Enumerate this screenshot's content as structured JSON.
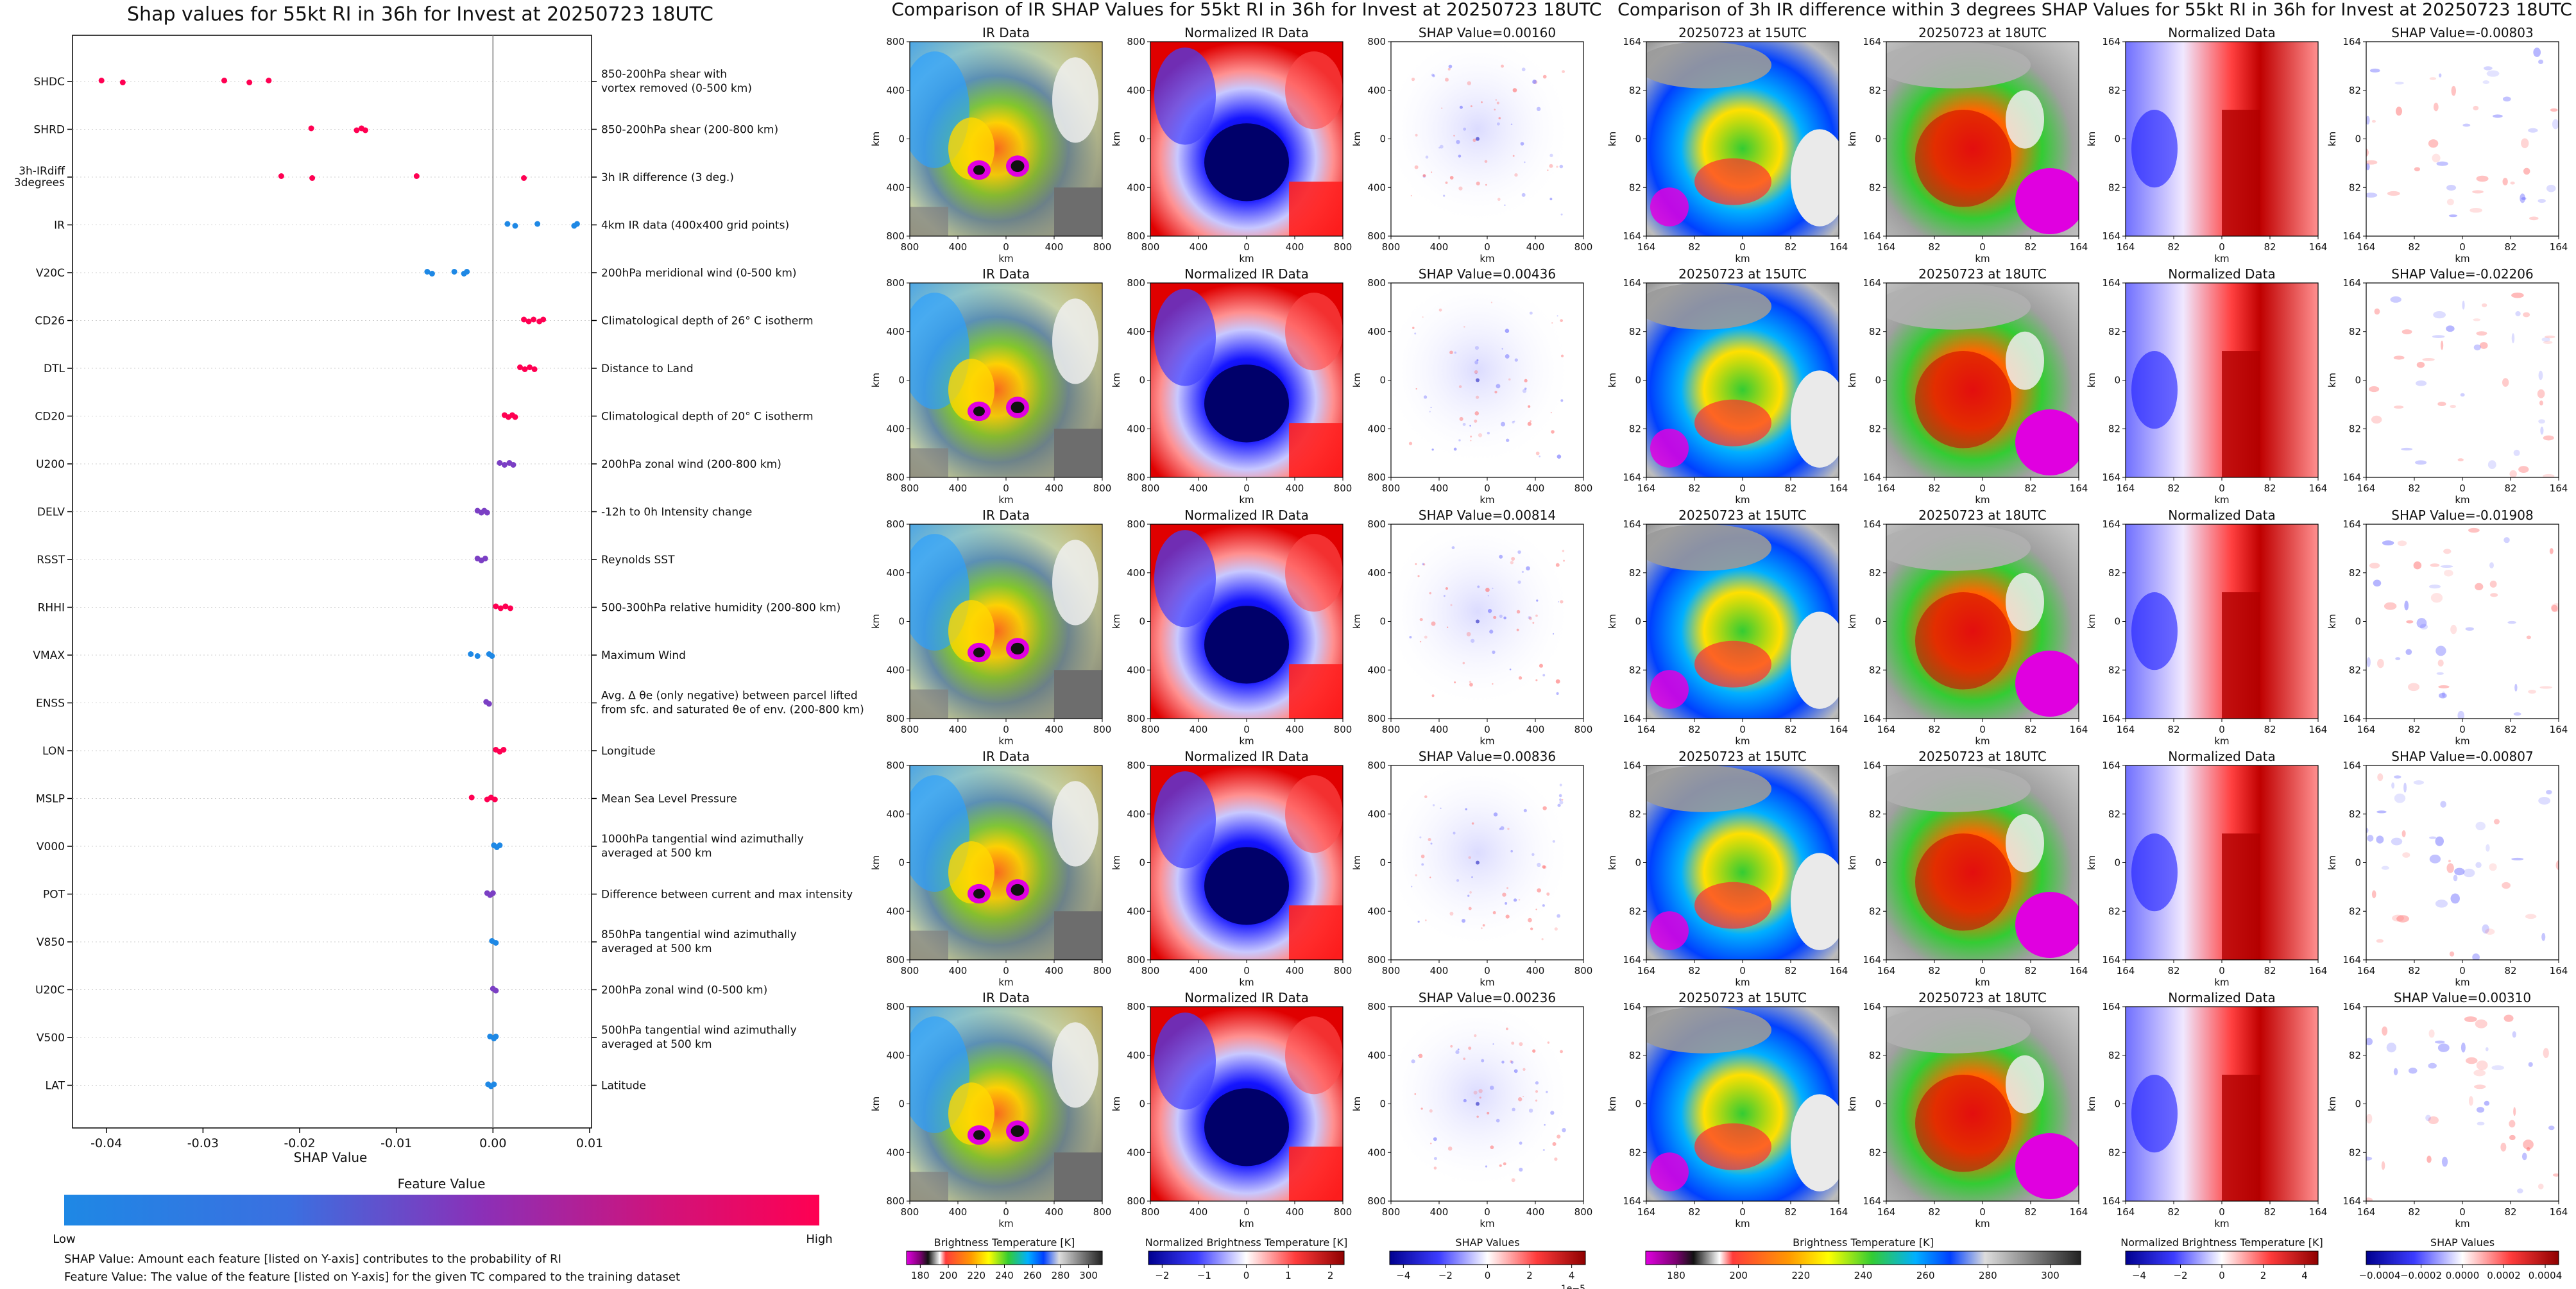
{
  "left": {
    "title": "Shap values for 55kt RI in 36h for Invest at 20250723 18UTC",
    "xlabel": "SHAP Value",
    "colorbar": {
      "title": "Feature Value",
      "low": "Low",
      "high": "High"
    },
    "notes": [
      "SHAP Value: Amount each feature [listed on Y-axis] contributes to the probability of RI",
      "Feature Value: The value of the feature [listed on Y-axis] for the given TC compared to the training dataset"
    ]
  },
  "chart_data": [
    {
      "type": "scatter",
      "title": "Shap values for 55kt RI in 36h for Invest at 20250723 18UTC",
      "xlabel": "SHAP Value",
      "xlim": [
        -0.0435,
        0.0102
      ],
      "xticks": [
        "-0.04",
        "-0.03",
        "-0.02",
        "-0.01",
        "0.00",
        "0.01"
      ],
      "xtick_values": [
        -0.04,
        -0.03,
        -0.02,
        -0.01,
        0.0,
        0.01
      ],
      "legend": "colorbar-bottom",
      "color_scale": [
        "#1e88e5",
        "#7b3fc4",
        "#c5167c",
        "#ff0052"
      ],
      "features": [
        {
          "code": "SHDC",
          "desc": [
            "850-200hPa shear with",
            "vortex removed (0-500 km)"
          ],
          "points": [
            {
              "x": -0.0405,
              "c": 1
            },
            {
              "x": -0.0383,
              "c": 1
            },
            {
              "x": -0.0278,
              "c": 1
            },
            {
              "x": -0.0252,
              "c": 1
            },
            {
              "x": -0.0232,
              "c": 1
            }
          ]
        },
        {
          "code": "SHRD",
          "desc": [
            "850-200hPa shear (200-800 km)"
          ],
          "points": [
            {
              "x": -0.0188,
              "c": 1
            },
            {
              "x": -0.0141,
              "c": 1
            },
            {
              "x": -0.0136,
              "c": 1
            },
            {
              "x": -0.0132,
              "c": 1
            }
          ]
        },
        {
          "code": "3h-IRdiff 3degrees",
          "desc": [
            "3h IR difference (3 deg.)"
          ],
          "points": [
            {
              "x": -0.0219,
              "c": 1
            },
            {
              "x": -0.0187,
              "c": 1
            },
            {
              "x": -0.0079,
              "c": 1
            },
            {
              "x": 0.0032,
              "c": 1
            }
          ]
        },
        {
          "code": "IR",
          "desc": [
            "4km IR data (400x400 grid points)"
          ],
          "points": [
            {
              "x": 0.0015,
              "c": 0
            },
            {
              "x": 0.0023,
              "c": 0
            },
            {
              "x": 0.0046,
              "c": 0
            },
            {
              "x": 0.0084,
              "c": 0
            },
            {
              "x": 0.0087,
              "c": 0
            }
          ]
        },
        {
          "code": "V20C",
          "desc": [
            "200hPa meridional wind (0-500 km)"
          ],
          "points": [
            {
              "x": -0.0068,
              "c": 0
            },
            {
              "x": -0.0063,
              "c": 0
            },
            {
              "x": -0.004,
              "c": 0
            },
            {
              "x": -0.003,
              "c": 0
            },
            {
              "x": -0.0027,
              "c": 0
            }
          ]
        },
        {
          "code": "CD26",
          "desc": [
            "Climatological depth of 26° C isotherm"
          ],
          "points": [
            {
              "x": 0.0032,
              "c": 1
            },
            {
              "x": 0.0037,
              "c": 1
            },
            {
              "x": 0.0042,
              "c": 1
            },
            {
              "x": 0.0048,
              "c": 1
            },
            {
              "x": 0.0052,
              "c": 1
            }
          ]
        },
        {
          "code": "DTL",
          "desc": [
            "Distance to Land"
          ],
          "points": [
            {
              "x": 0.0028,
              "c": 1
            },
            {
              "x": 0.0033,
              "c": 1
            },
            {
              "x": 0.0038,
              "c": 1
            },
            {
              "x": 0.0043,
              "c": 1
            }
          ]
        },
        {
          "code": "CD20",
          "desc": [
            "Climatological depth of 20° C isotherm"
          ],
          "points": [
            {
              "x": 0.0012,
              "c": 1
            },
            {
              "x": 0.0016,
              "c": 1
            },
            {
              "x": 0.002,
              "c": 1
            },
            {
              "x": 0.0023,
              "c": 1
            }
          ]
        },
        {
          "code": "U200",
          "desc": [
            "200hPa zonal wind (200-800 km)"
          ],
          "points": [
            {
              "x": 0.0007,
              "c": 0.5
            },
            {
              "x": 0.0012,
              "c": 0.5
            },
            {
              "x": 0.0017,
              "c": 0.5
            },
            {
              "x": 0.0021,
              "c": 0.5
            }
          ]
        },
        {
          "code": "DELV",
          "desc": [
            "-12h to 0h Intensity change"
          ],
          "points": [
            {
              "x": -0.0016,
              "c": 0.5
            },
            {
              "x": -0.0012,
              "c": 0.5
            },
            {
              "x": -0.0009,
              "c": 0.5
            },
            {
              "x": -0.0006,
              "c": 0.5
            }
          ]
        },
        {
          "code": "RSST",
          "desc": [
            "Reynolds SST"
          ],
          "points": [
            {
              "x": -0.0016,
              "c": 0.5
            },
            {
              "x": -0.0012,
              "c": 0.5
            },
            {
              "x": -0.0008,
              "c": 0.5
            }
          ]
        },
        {
          "code": "RHHI",
          "desc": [
            "500-300hPa relative humidity (200-800 km)"
          ],
          "points": [
            {
              "x": 0.0003,
              "c": 1
            },
            {
              "x": 0.0008,
              "c": 1
            },
            {
              "x": 0.0013,
              "c": 1
            },
            {
              "x": 0.0018,
              "c": 1
            }
          ]
        },
        {
          "code": "VMAX",
          "desc": [
            "Maximum Wind"
          ],
          "points": [
            {
              "x": -0.0023,
              "c": 0
            },
            {
              "x": -0.0016,
              "c": 0
            },
            {
              "x": -0.0004,
              "c": 0
            },
            {
              "x": -0.0001,
              "c": 0
            }
          ]
        },
        {
          "code": "ENSS",
          "desc": [
            "Avg. Δ θe (only negative) between parcel lifted",
            "from sfc. and saturated θe of env. (200-800 km)"
          ],
          "points": [
            {
              "x": -0.0007,
              "c": 0.5
            },
            {
              "x": -0.0004,
              "c": 0.5
            }
          ]
        },
        {
          "code": "LON",
          "desc": [
            "Longitude"
          ],
          "points": [
            {
              "x": 0.0003,
              "c": 1
            },
            {
              "x": 0.0007,
              "c": 1
            },
            {
              "x": 0.0011,
              "c": 1
            }
          ]
        },
        {
          "code": "MSLP",
          "desc": [
            "Mean Sea Level Pressure"
          ],
          "points": [
            {
              "x": -0.0022,
              "c": 1
            },
            {
              "x": -0.0006,
              "c": 1
            },
            {
              "x": -0.0002,
              "c": 1
            },
            {
              "x": 0.0002,
              "c": 1
            }
          ]
        },
        {
          "code": "V000",
          "desc": [
            "1000hPa tangential wind azimuthally",
            "averaged at 500 km"
          ],
          "points": [
            {
              "x": 0.0001,
              "c": 0
            },
            {
              "x": 0.0004,
              "c": 0
            },
            {
              "x": 0.0007,
              "c": 0
            }
          ]
        },
        {
          "code": "POT",
          "desc": [
            "Difference between current and max intensity"
          ],
          "points": [
            {
              "x": -0.0006,
              "c": 0.5
            },
            {
              "x": -0.0003,
              "c": 0.5
            },
            {
              "x": 0.0,
              "c": 0.5
            }
          ]
        },
        {
          "code": "V850",
          "desc": [
            "850hPa tangential wind azimuthally",
            "averaged at 500 km"
          ],
          "points": [
            {
              "x": -0.0001,
              "c": 0
            },
            {
              "x": 0.0003,
              "c": 0
            }
          ]
        },
        {
          "code": "U20C",
          "desc": [
            "200hPa zonal wind (0-500 km)"
          ],
          "points": [
            {
              "x": 0.0,
              "c": 0.5
            },
            {
              "x": 0.0003,
              "c": 0.5
            }
          ]
        },
        {
          "code": "V500",
          "desc": [
            "500hPa tangential wind azimuthally",
            "averaged at 500 km"
          ],
          "points": [
            {
              "x": -0.0003,
              "c": 0
            },
            {
              "x": 0.0001,
              "c": 0
            },
            {
              "x": 0.0003,
              "c": 0
            }
          ]
        },
        {
          "code": "LAT",
          "desc": [
            "Latitude"
          ],
          "points": [
            {
              "x": -0.0005,
              "c": 0
            },
            {
              "x": -0.0002,
              "c": 0
            },
            {
              "x": 0.0001,
              "c": 0
            }
          ]
        }
      ]
    },
    {
      "type": "heatmap",
      "title": "Comparison of IR SHAP Values for 55kt RI in 36h for Invest at 20250723 18UTC",
      "columns": [
        "IR Data",
        "Normalized IR Data",
        "SHAP Value"
      ],
      "xlabel": "km",
      "ylabel": "km",
      "ticks": [
        "800",
        "400",
        "0",
        "400",
        "800"
      ],
      "shap_values": [
        "0.00160",
        "0.00436",
        "0.00814",
        "0.00836",
        "0.00236"
      ],
      "shap_title_prefix": "SHAP Value=",
      "last_row_shap_title": "SHAP Values",
      "colorbars": [
        {
          "label": "Brightness Temperature [K]",
          "ticks": [
            "180",
            "200",
            "220",
            "240",
            "260",
            "280",
            "300"
          ]
        },
        {
          "label": "Normalized Brightness Temperature [K]",
          "ticks": [
            "−2",
            "−1",
            "0",
            "1",
            "2"
          ]
        },
        {
          "label": "SHAP Values",
          "ticks": [
            "−4",
            "−2",
            "0",
            "2",
            "4"
          ],
          "offset": "1e−5"
        }
      ]
    },
    {
      "type": "heatmap",
      "title": "Comparison of 3h IR difference within 3 degrees SHAP Values for 55kt RI in 36h for Invest at 20250723 18UTC",
      "columns": [
        "20250723 at 15UTC",
        "20250723 at 18UTC",
        "Normalized Data",
        "SHAP Value"
      ],
      "xlabel": "km",
      "ylabel": "km",
      "ticks": [
        "164",
        "82",
        "0",
        "82",
        "164"
      ],
      "shap_values": [
        "-0.00803",
        "-0.02206",
        "-0.01908",
        "-0.00807",
        "0.00310"
      ],
      "shap_title_prefix": "SHAP Value=",
      "colorbars": [
        {
          "label": "Brightness Temperature [K]",
          "ticks": [
            "180",
            "200",
            "220",
            "240",
            "260",
            "280",
            "300"
          ]
        },
        {
          "label": "Normalized Brightness Temperature [K]",
          "ticks": [
            "−4",
            "−2",
            "0",
            "2",
            "4"
          ]
        },
        {
          "label": "SHAP Values",
          "ticks": [
            "−0.0004",
            "−0.0002",
            "0.0000",
            "0.0002",
            "0.0004"
          ]
        }
      ]
    }
  ]
}
